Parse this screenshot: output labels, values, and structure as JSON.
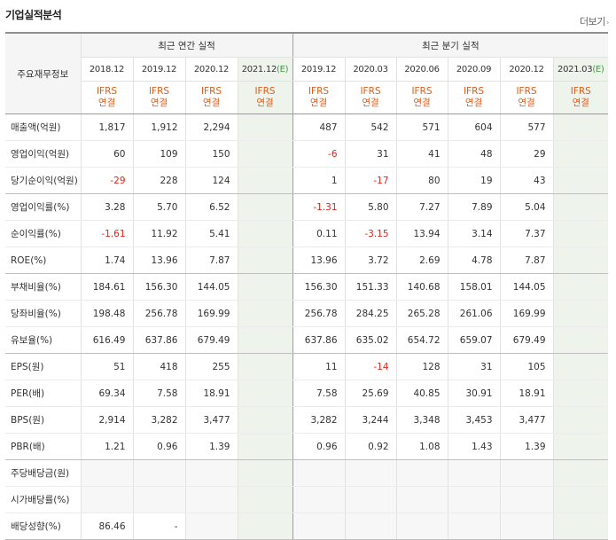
{
  "section_title": "기업실적분석",
  "more_link": "더보기",
  "header": {
    "corner_label": "주요재무정보",
    "annual_group": "최근 연간 실적",
    "quarter_group": "최근 분기 실적",
    "annual_periods": [
      "2018.12",
      "2019.12",
      "2020.12",
      "2021.12"
    ],
    "quarter_periods": [
      "2019.12",
      "2020.03",
      "2020.06",
      "2020.09",
      "2020.12",
      "2021.03"
    ],
    "est_mark": "(E)",
    "ifrs_top": "IFRS",
    "ifrs_bottom": "연결"
  },
  "rows": [
    {
      "label": "매출액(억원)",
      "annual": [
        "1,817",
        "1,912",
        "2,294",
        ""
      ],
      "quarter": [
        "487",
        "542",
        "571",
        "604",
        "577",
        ""
      ]
    },
    {
      "label": "영업이익(억원)",
      "annual": [
        "60",
        "109",
        "150",
        ""
      ],
      "quarter": [
        "-6",
        "31",
        "41",
        "48",
        "29",
        ""
      ]
    },
    {
      "label": "당기순이익(억원)",
      "annual": [
        "-29",
        "228",
        "124",
        ""
      ],
      "quarter": [
        "1",
        "-17",
        "80",
        "19",
        "43",
        ""
      ]
    },
    {
      "label": "영업이익률(%)",
      "annual": [
        "3.28",
        "5.70",
        "6.52",
        ""
      ],
      "quarter": [
        "-1.31",
        "5.80",
        "7.27",
        "7.89",
        "5.04",
        ""
      ]
    },
    {
      "label": "순이익률(%)",
      "annual": [
        "-1.61",
        "11.92",
        "5.41",
        ""
      ],
      "quarter": [
        "0.11",
        "-3.15",
        "13.94",
        "3.14",
        "7.37",
        ""
      ]
    },
    {
      "label": "ROE(%)",
      "annual": [
        "1.74",
        "13.96",
        "7.87",
        ""
      ],
      "quarter": [
        "13.96",
        "3.72",
        "2.69",
        "4.78",
        "7.87",
        ""
      ]
    },
    {
      "label": "부채비율(%)",
      "annual": [
        "184.61",
        "156.30",
        "144.05",
        ""
      ],
      "quarter": [
        "156.30",
        "151.33",
        "140.68",
        "158.01",
        "144.05",
        ""
      ]
    },
    {
      "label": "당좌비율(%)",
      "annual": [
        "198.48",
        "256.78",
        "169.99",
        ""
      ],
      "quarter": [
        "256.78",
        "284.25",
        "265.28",
        "261.06",
        "169.99",
        ""
      ]
    },
    {
      "label": "유보율(%)",
      "annual": [
        "616.49",
        "637.86",
        "679.49",
        ""
      ],
      "quarter": [
        "637.86",
        "635.02",
        "654.72",
        "659.07",
        "679.49",
        ""
      ]
    },
    {
      "label": "EPS(원)",
      "annual": [
        "51",
        "418",
        "255",
        ""
      ],
      "quarter": [
        "11",
        "-14",
        "128",
        "31",
        "105",
        ""
      ]
    },
    {
      "label": "PER(배)",
      "annual": [
        "69.34",
        "7.58",
        "18.91",
        ""
      ],
      "quarter": [
        "7.58",
        "25.69",
        "40.85",
        "30.91",
        "18.91",
        ""
      ]
    },
    {
      "label": "BPS(원)",
      "annual": [
        "2,914",
        "3,282",
        "3,477",
        ""
      ],
      "quarter": [
        "3,282",
        "3,244",
        "3,348",
        "3,453",
        "3,477",
        ""
      ]
    },
    {
      "label": "PBR(배)",
      "annual": [
        "1.21",
        "0.96",
        "1.39",
        ""
      ],
      "quarter": [
        "0.96",
        "0.92",
        "1.08",
        "1.43",
        "1.39",
        ""
      ]
    },
    {
      "label": "주당배당금(원)",
      "annual": [
        "",
        "",
        "",
        ""
      ],
      "quarter": [
        "",
        "",
        "",
        "",
        "",
        ""
      ]
    },
    {
      "label": "시가배당률(%)",
      "annual": [
        "",
        "",
        "",
        ""
      ],
      "quarter": [
        "",
        "",
        "",
        "",
        "",
        ""
      ]
    },
    {
      "label": "배당성향(%)",
      "annual": [
        "86.46",
        "-",
        "",
        ""
      ],
      "quarter": [
        "",
        "",
        "",
        "",
        "",
        ""
      ]
    }
  ],
  "colors": {
    "negative": "#e0241a",
    "ifrs": "#e25c1a",
    "estimate_bg": "#eef4ec"
  }
}
